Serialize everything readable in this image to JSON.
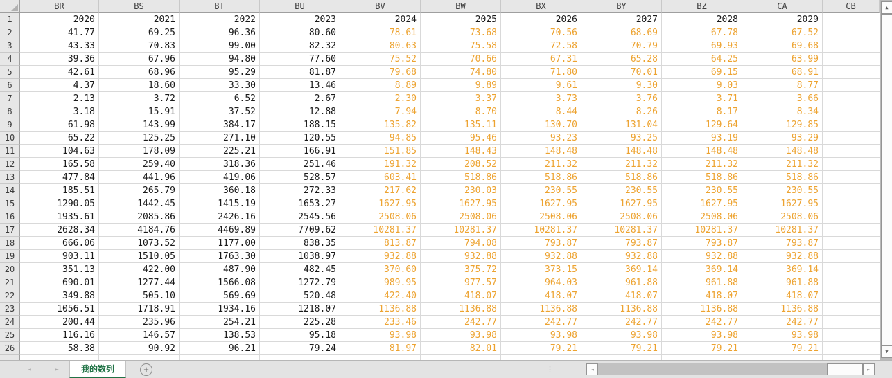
{
  "sheet": {
    "column_headers": [
      "BR",
      "BS",
      "BT",
      "BU",
      "BV",
      "BW",
      "BX",
      "BY",
      "BZ",
      "CA",
      "CB"
    ],
    "rows": [
      {
        "n": "1",
        "values": [
          "2020",
          "2021",
          "2022",
          "2023",
          "2024",
          "2025",
          "2026",
          "2027",
          "2028",
          "2029"
        ]
      },
      {
        "n": "2",
        "values": [
          "41.77",
          "69.25",
          "96.36",
          "80.60",
          "78.61",
          "73.68",
          "70.56",
          "68.69",
          "67.78",
          "67.52"
        ]
      },
      {
        "n": "3",
        "values": [
          "43.33",
          "70.83",
          "99.00",
          "82.32",
          "80.63",
          "75.58",
          "72.58",
          "70.79",
          "69.93",
          "69.68"
        ]
      },
      {
        "n": "4",
        "values": [
          "39.36",
          "67.96",
          "94.80",
          "77.60",
          "75.52",
          "70.66",
          "67.31",
          "65.28",
          "64.25",
          "63.99"
        ]
      },
      {
        "n": "5",
        "values": [
          "42.61",
          "68.96",
          "95.29",
          "81.87",
          "79.68",
          "74.80",
          "71.80",
          "70.01",
          "69.15",
          "68.91"
        ]
      },
      {
        "n": "6",
        "values": [
          "4.37",
          "18.60",
          "33.30",
          "13.46",
          "8.89",
          "9.89",
          "9.61",
          "9.30",
          "9.03",
          "8.77"
        ]
      },
      {
        "n": "7",
        "values": [
          "2.13",
          "3.72",
          "6.52",
          "2.67",
          "2.30",
          "3.37",
          "3.73",
          "3.76",
          "3.71",
          "3.66"
        ]
      },
      {
        "n": "8",
        "values": [
          "3.18",
          "15.91",
          "37.52",
          "12.88",
          "7.94",
          "8.70",
          "8.44",
          "8.26",
          "8.17",
          "8.34"
        ]
      },
      {
        "n": "9",
        "values": [
          "61.98",
          "143.99",
          "384.17",
          "188.15",
          "135.82",
          "135.11",
          "130.70",
          "131.04",
          "129.64",
          "129.85"
        ]
      },
      {
        "n": "10",
        "values": [
          "65.22",
          "125.25",
          "271.10",
          "120.55",
          "94.85",
          "95.46",
          "93.23",
          "93.25",
          "93.19",
          "93.29"
        ]
      },
      {
        "n": "11",
        "values": [
          "104.63",
          "178.09",
          "225.21",
          "166.91",
          "151.85",
          "148.43",
          "148.48",
          "148.48",
          "148.48",
          "148.48"
        ]
      },
      {
        "n": "12",
        "values": [
          "165.58",
          "259.40",
          "318.36",
          "251.46",
          "191.32",
          "208.52",
          "211.32",
          "211.32",
          "211.32",
          "211.32"
        ]
      },
      {
        "n": "13",
        "values": [
          "477.84",
          "441.96",
          "419.06",
          "528.57",
          "603.41",
          "518.86",
          "518.86",
          "518.86",
          "518.86",
          "518.86"
        ]
      },
      {
        "n": "14",
        "values": [
          "185.51",
          "265.79",
          "360.18",
          "272.33",
          "217.62",
          "230.03",
          "230.55",
          "230.55",
          "230.55",
          "230.55"
        ]
      },
      {
        "n": "15",
        "values": [
          "1290.05",
          "1442.45",
          "1415.19",
          "1653.27",
          "1627.95",
          "1627.95",
          "1627.95",
          "1627.95",
          "1627.95",
          "1627.95"
        ]
      },
      {
        "n": "16",
        "values": [
          "1935.61",
          "2085.86",
          "2426.16",
          "2545.56",
          "2508.06",
          "2508.06",
          "2508.06",
          "2508.06",
          "2508.06",
          "2508.06"
        ]
      },
      {
        "n": "17",
        "values": [
          "2628.34",
          "4184.76",
          "4469.89",
          "7709.62",
          "10281.37",
          "10281.37",
          "10281.37",
          "10281.37",
          "10281.37",
          "10281.37"
        ]
      },
      {
        "n": "18",
        "values": [
          "666.06",
          "1073.52",
          "1177.00",
          "838.35",
          "813.87",
          "794.08",
          "793.87",
          "793.87",
          "793.87",
          "793.87"
        ]
      },
      {
        "n": "19",
        "values": [
          "903.11",
          "1510.05",
          "1763.30",
          "1038.97",
          "932.88",
          "932.88",
          "932.88",
          "932.88",
          "932.88",
          "932.88"
        ]
      },
      {
        "n": "20",
        "values": [
          "351.13",
          "422.00",
          "487.90",
          "482.45",
          "370.60",
          "375.72",
          "373.15",
          "369.14",
          "369.14",
          "369.14"
        ]
      },
      {
        "n": "21",
        "values": [
          "690.01",
          "1277.44",
          "1566.08",
          "1272.79",
          "989.95",
          "977.57",
          "964.03",
          "961.88",
          "961.88",
          "961.88"
        ]
      },
      {
        "n": "22",
        "values": [
          "349.88",
          "505.10",
          "569.69",
          "520.48",
          "422.40",
          "418.07",
          "418.07",
          "418.07",
          "418.07",
          "418.07"
        ]
      },
      {
        "n": "23",
        "values": [
          "1056.51",
          "1718.91",
          "1934.16",
          "1218.07",
          "1136.88",
          "1136.88",
          "1136.88",
          "1136.88",
          "1136.88",
          "1136.88"
        ]
      },
      {
        "n": "24",
        "values": [
          "200.44",
          "235.96",
          "254.21",
          "225.28",
          "233.46",
          "242.77",
          "242.77",
          "242.77",
          "242.77",
          "242.77"
        ]
      },
      {
        "n": "25",
        "values": [
          "116.16",
          "146.57",
          "138.53",
          "95.18",
          "93.98",
          "93.98",
          "93.98",
          "93.98",
          "93.98",
          "93.98"
        ]
      },
      {
        "n": "26",
        "values": [
          "58.38",
          "90.92",
          "96.21",
          "79.24",
          "81.97",
          "82.01",
          "79.21",
          "79.21",
          "79.21",
          "79.21"
        ]
      }
    ],
    "partial_row": {
      "n": "",
      "values": [
        "",
        "",
        "",
        "",
        "",
        "",
        "",
        "",
        "",
        ""
      ]
    }
  },
  "tabs": {
    "active": "我的数列"
  },
  "icons": {
    "add": "+",
    "nav_left": "◄",
    "nav_right": "►",
    "scroll_up": "▲",
    "scroll_down": "▼",
    "scroll_left": "◄",
    "scroll_right": "►",
    "grip": "⋮"
  },
  "colors": {
    "forecast_text": "#EDA330",
    "actual_text": "#1A1A1A",
    "tab_accent": "#217346",
    "gridline": "#D9D9D9",
    "header_fill": "#E7E7E7"
  }
}
